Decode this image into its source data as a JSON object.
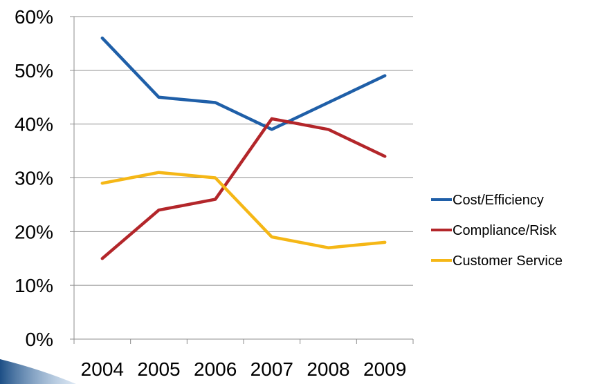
{
  "chart_data": {
    "type": "line",
    "categories": [
      "2004",
      "2005",
      "2006",
      "2007",
      "2008",
      "2009"
    ],
    "series": [
      {
        "name": "Cost/Efficiency",
        "color": "#1f5fa8",
        "values": [
          56,
          45,
          44,
          39,
          44,
          49
        ]
      },
      {
        "name": "Compliance/Risk",
        "color": "#b3262a",
        "values": [
          15,
          24,
          26,
          41,
          39,
          34
        ]
      },
      {
        "name": "Customer Service",
        "color": "#f5b716",
        "values": [
          29,
          31,
          30,
          19,
          17,
          18
        ]
      }
    ],
    "y_ticks": [
      "0%",
      "10%",
      "20%",
      "30%",
      "40%",
      "50%",
      "60%"
    ],
    "ylim": [
      0,
      60
    ],
    "title": "",
    "xlabel": "",
    "ylabel": "",
    "grid": true,
    "legend": "right"
  }
}
